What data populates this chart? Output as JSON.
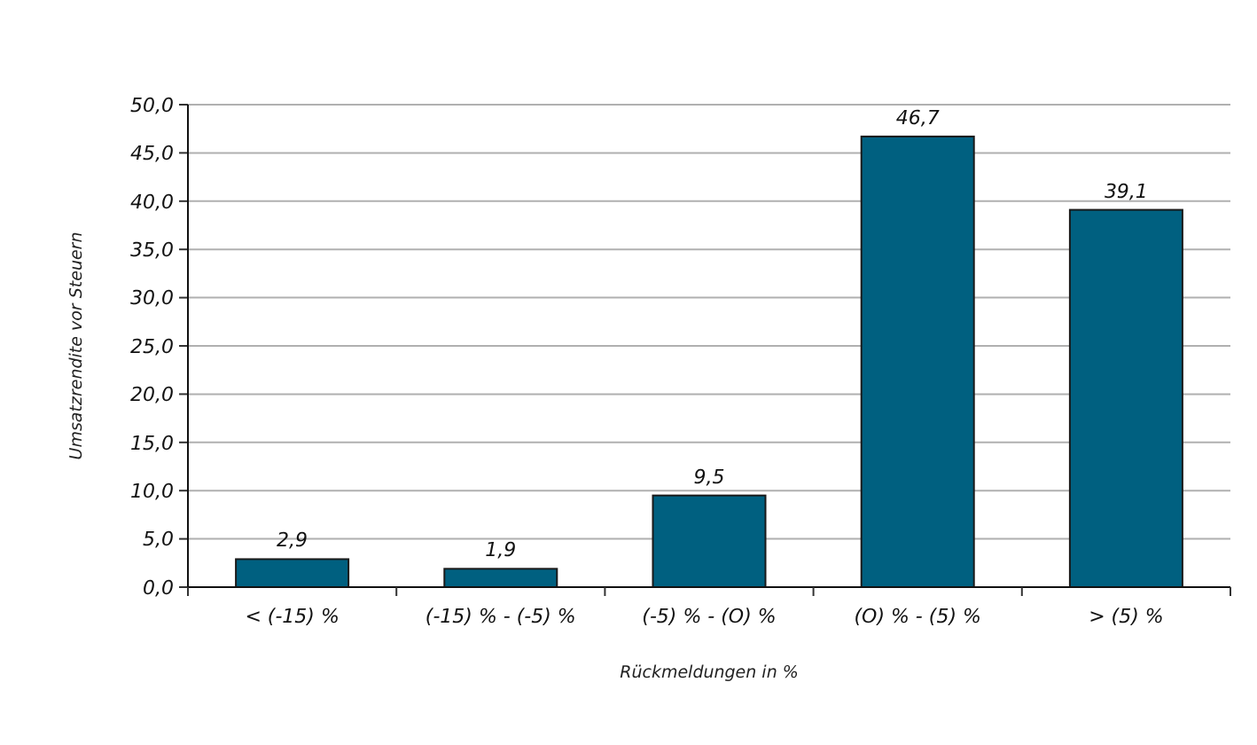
{
  "chart_data": {
    "type": "bar",
    "xlabel": "Rückmeldungen in %",
    "ylabel": "Umsatzrendite vor Steuern",
    "categories": [
      "< (-15) %",
      "(-15) % - (-5) %",
      "(-5) % - (O) %",
      "(O) % - (5) %",
      "> (5) %"
    ],
    "values": [
      2.9,
      1.9,
      9.5,
      46.7,
      39.1
    ],
    "value_labels": [
      "2,9",
      "1,9",
      "9,5",
      "46,7",
      "39,1"
    ],
    "color": "#006080",
    "ylim": [
      0,
      50
    ],
    "yticks": [
      {
        "value": 0,
        "label": "0,0"
      },
      {
        "value": 5,
        "label": "5,0"
      },
      {
        "value": 10,
        "label": "10,0"
      },
      {
        "value": 15,
        "label": "15,0"
      },
      {
        "value": 20,
        "label": "20,0"
      },
      {
        "value": 25,
        "label": "25,0"
      },
      {
        "value": 30,
        "label": "30,0"
      },
      {
        "value": 35,
        "label": "35,0"
      },
      {
        "value": 40,
        "label": "40,0"
      },
      {
        "value": 45,
        "label": "45,0"
      },
      {
        "value": 50,
        "label": "50,0"
      }
    ],
    "grid": "y"
  }
}
